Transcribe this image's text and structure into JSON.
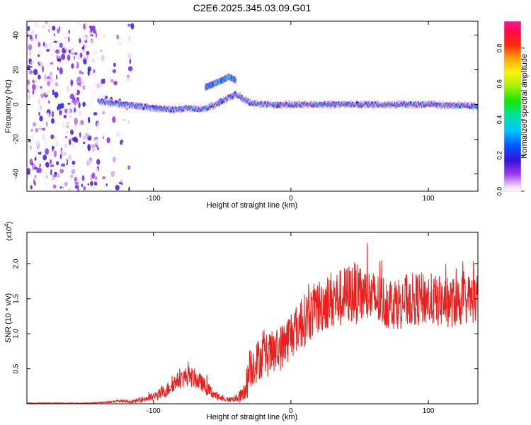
{
  "chart_data": [
    {
      "type": "heatmap",
      "title": "C2E6.2025.345.03.09.G01",
      "xlabel": "Height of straight line (km)",
      "ylabel": "Frequency (Hz)",
      "xlim": [
        -192,
        136
      ],
      "ylim": [
        -50,
        48
      ],
      "xticks": [
        -100,
        0,
        100
      ],
      "xtick_labels": [
        "-100",
        "0",
        "100"
      ],
      "yticks": [
        -40,
        -20,
        0,
        20,
        40
      ],
      "ytick_labels": [
        "-40",
        "-20",
        "0",
        "20",
        "40"
      ],
      "colorbar": {
        "label": "Normalized spectral amplitude",
        "range": [
          0,
          0.95
        ],
        "ticks": [
          0.0,
          0.2,
          0.4,
          0.6,
          0.8
        ],
        "tick_labels": [
          "0.0",
          "0.2",
          "0.4",
          "0.6",
          "0.8"
        ],
        "colormap": "rainbow (white-violet-blue-cyan-green-yellow-orange-red-magenta)"
      },
      "ridge": {
        "description": "dominant spectral line vs height",
        "x": [
          -140,
          -120,
          -100,
          -85,
          -75,
          -65,
          -55,
          -45,
          -40,
          -30,
          -20,
          0,
          50,
          100,
          136
        ],
        "frequency": [
          2,
          0,
          -2,
          -3,
          -2,
          -3,
          0,
          4,
          6,
          1,
          0,
          0,
          0,
          0,
          -1
        ]
      },
      "secondary_branch": {
        "x": [
          -62,
          -56,
          -50,
          -45,
          -40
        ],
        "frequency": [
          10,
          12,
          14,
          16,
          14
        ]
      },
      "broadband_region": {
        "x_range": [
          -192,
          -115
        ],
        "frequency_range": [
          -50,
          48
        ]
      }
    },
    {
      "type": "line",
      "xlabel": "Height of straight line (km)",
      "ylabel": "SNR (10 * v/v)",
      "yscale_label": "(x10",
      "yscale_exponent": "4",
      "xlim": [
        -192,
        136
      ],
      "ylim": [
        0,
        2.45
      ],
      "xticks": [
        -100,
        0,
        100
      ],
      "xtick_labels": [
        "-100",
        "0",
        "100"
      ],
      "yticks": [
        0.5,
        1.0,
        1.5,
        2.0
      ],
      "ytick_labels": [
        "0.5",
        "1.0",
        "1.5",
        "2.0"
      ],
      "color": "#e8211e",
      "series": [
        {
          "name": "SNR",
          "x": [
            -192,
            -170,
            -150,
            -135,
            -125,
            -115,
            -105,
            -100,
            -95,
            -90,
            -85,
            -80,
            -75,
            -70,
            -65,
            -60,
            -55,
            -50,
            -45,
            -40,
            -35,
            -32,
            -30,
            -28,
            -25,
            -20,
            -15,
            -10,
            -5,
            0,
            5,
            10,
            15,
            20,
            25,
            30,
            35,
            40,
            45,
            50,
            55,
            60,
            70,
            80,
            90,
            100,
            110,
            120,
            130,
            136
          ],
          "y": [
            0.01,
            0.01,
            0.01,
            0.02,
            0.04,
            0.03,
            0.08,
            0.1,
            0.14,
            0.2,
            0.3,
            0.35,
            0.4,
            0.36,
            0.3,
            0.2,
            0.12,
            0.07,
            0.06,
            0.08,
            0.12,
            0.3,
            0.5,
            0.55,
            0.6,
            0.7,
            0.7,
            0.75,
            0.85,
            1.0,
            1.1,
            1.2,
            1.3,
            1.38,
            1.45,
            1.5,
            1.5,
            1.55,
            1.6,
            1.55,
            1.55,
            1.5,
            1.45,
            1.45,
            1.5,
            1.5,
            1.45,
            1.45,
            1.5,
            1.5
          ],
          "noise_amplitude": [
            0.005,
            0.005,
            0.005,
            0.01,
            0.02,
            0.02,
            0.05,
            0.06,
            0.08,
            0.1,
            0.12,
            0.12,
            0.14,
            0.14,
            0.12,
            0.1,
            0.06,
            0.04,
            0.03,
            0.05,
            0.12,
            0.25,
            0.3,
            0.3,
            0.3,
            0.3,
            0.32,
            0.32,
            0.34,
            0.36,
            0.36,
            0.38,
            0.38,
            0.4,
            0.4,
            0.42,
            0.42,
            0.42,
            0.45,
            0.42,
            0.4,
            0.4,
            0.38,
            0.38,
            0.38,
            0.38,
            0.36,
            0.36,
            0.36,
            0.36
          ]
        }
      ]
    }
  ]
}
